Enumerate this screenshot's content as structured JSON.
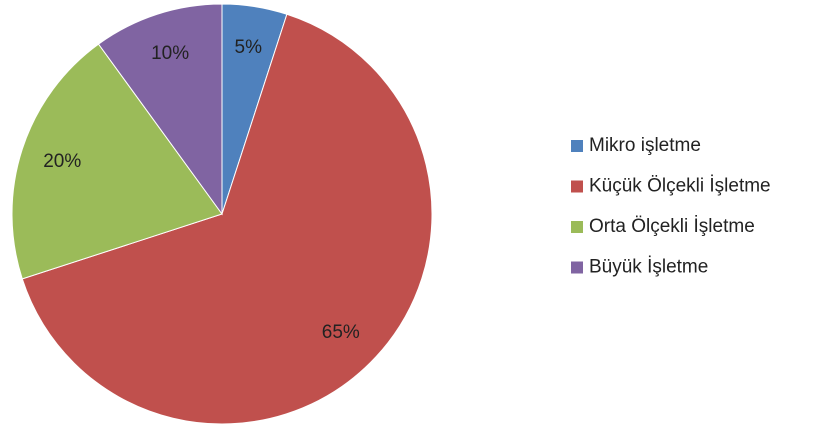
{
  "chart_data": {
    "type": "pie",
    "categories": [
      "Mikro işletme",
      "Küçük Ölçekli İşletme",
      "Orta Ölçekli İşletme",
      "Büyük İşletme"
    ],
    "values": [
      5,
      65,
      20,
      10
    ],
    "value_labels": [
      "5%",
      "65%",
      "20%",
      "10%"
    ],
    "colors": [
      "#4f81bd",
      "#c0504d",
      "#9bbb59",
      "#8064a2"
    ],
    "legend": "right"
  }
}
